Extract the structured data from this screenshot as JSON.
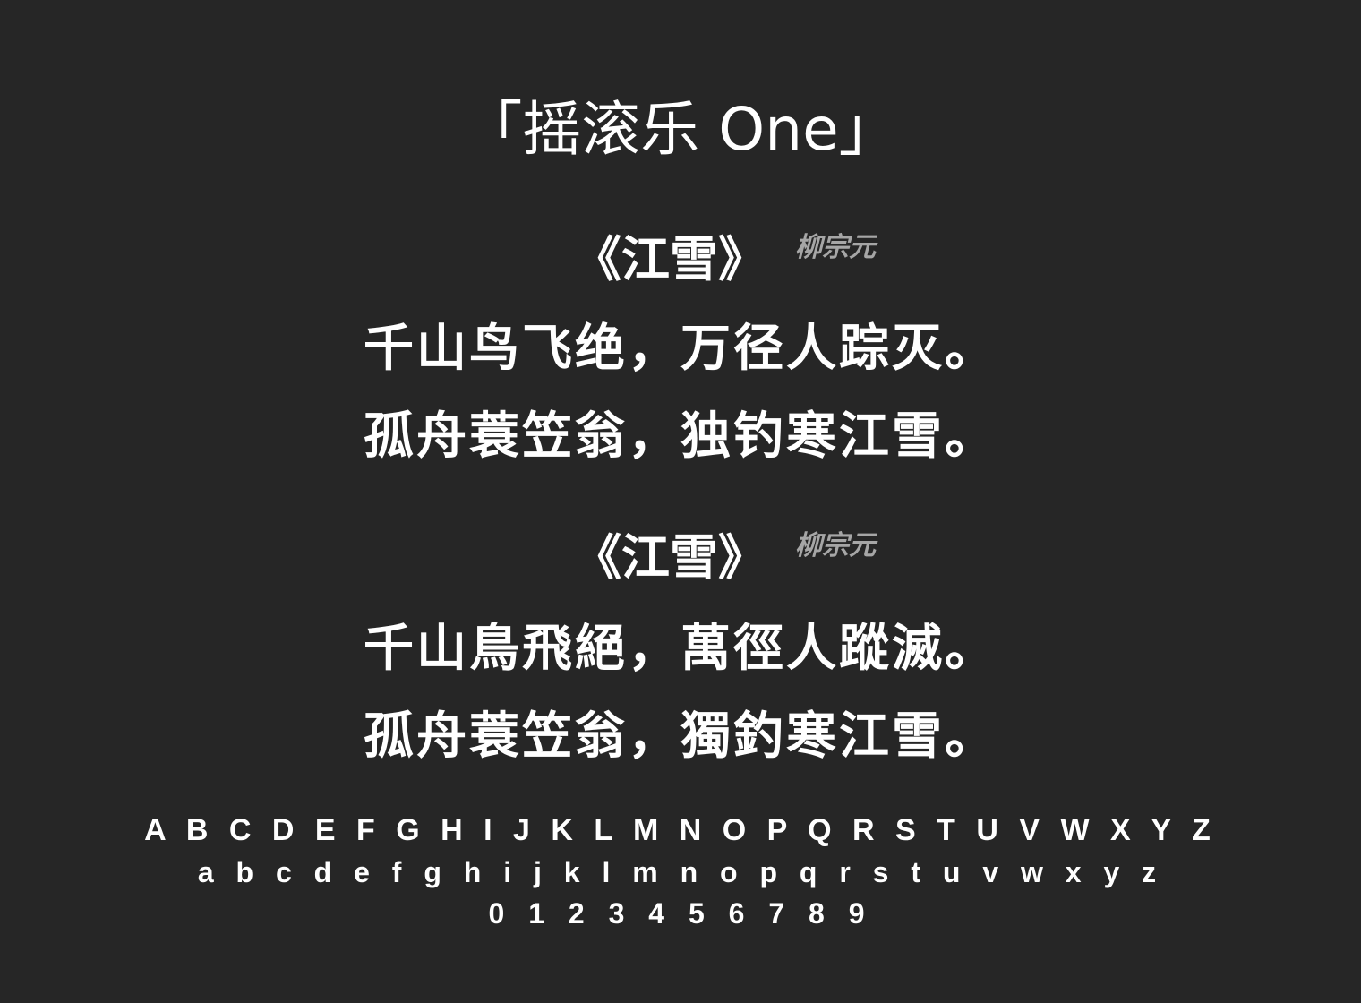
{
  "title": "「摇滚乐 One」",
  "poems": [
    {
      "title": "《江雪》",
      "author": "柳宗元",
      "lines": [
        "千山鸟飞绝，万径人踪灭。",
        "孤舟蓑笠翁，独钓寒江雪。"
      ]
    },
    {
      "title": "《江雪》",
      "author": "柳宗元",
      "lines": [
        "千山鳥飛絕，萬徑人蹤滅。",
        "孤舟蓑笠翁，獨釣寒江雪。"
      ]
    }
  ],
  "glyphs": {
    "uppercase": "A B C D E F G H I J K L M N O P Q R S T U V W X Y Z",
    "lowercase": "a b c d e f g h i j k l m n o p q r s t u v w x y z",
    "digits": "0 1 2 3 4 5 6 7 8 9"
  }
}
